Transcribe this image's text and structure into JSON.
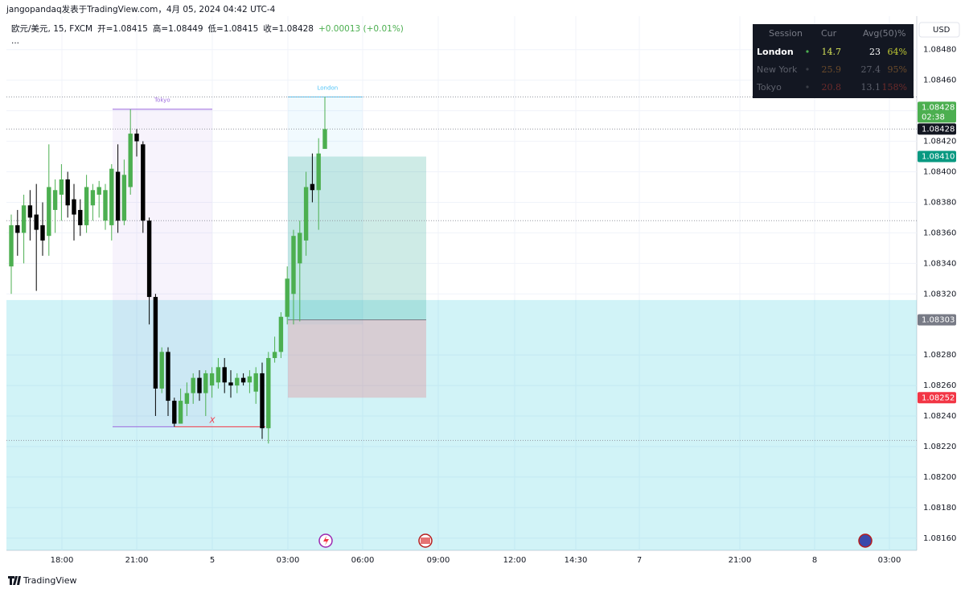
{
  "header": "jangopandaq发表于TradingView.com，4月 05, 2024 04:42 UTC-4",
  "legend": {
    "symbol": "欧元/美元, 15, FXCM",
    "items": [
      "开=1.08415",
      "高=1.08449",
      "低=1.08415",
      "收=1.08428",
      "+0.00013 (+0.01%)"
    ],
    "more": "..."
  },
  "currency": "USD",
  "footer": "TradingView",
  "session_table": {
    "columns": [
      "Session",
      "Cur",
      "Avg(50)",
      "%"
    ],
    "rows": [
      [
        "London",
        "14.7",
        "23",
        "64%"
      ],
      [
        "New York",
        "25.9",
        "27.4",
        "95%"
      ],
      [
        "Tokyo",
        "20.8",
        "13.1",
        "158%"
      ]
    ]
  },
  "chart_data": {
    "type": "candlestick",
    "x_labels": [
      "18:00",
      "21:00",
      "5",
      "03:00",
      "06:00",
      "09:00",
      "12:00",
      "14:30",
      "7",
      "21:00",
      "8",
      "03:00"
    ],
    "open": [
      1.08338,
      1.08365,
      1.0836,
      1.08378,
      1.08372,
      1.08365,
      1.08358,
      1.08375,
      1.08385,
      1.08395,
      1.08382,
      1.08375,
      1.08365,
      1.08378,
      1.08385,
      1.08368,
      1.08365,
      1.084,
      1.08368,
      1.0839,
      1.08425,
      1.08418,
      1.08368,
      1.08318,
      1.08258,
      1.08282,
      1.0825,
      1.08235,
      1.08248,
      1.08255,
      1.08265,
      1.08255,
      1.0826,
      1.08262,
      1.08272,
      1.08262,
      1.0826,
      1.08265,
      1.08262,
      1.08256,
      1.08268,
      1.08232,
      1.08278,
      1.08282,
      1.08305,
      1.0832,
      1.0834,
      1.08355,
      1.08392,
      1.08388,
      1.08415
    ],
    "high": [
      1.08372,
      1.08375,
      1.08385,
      1.08388,
      1.08392,
      1.0838,
      1.08418,
      1.08395,
      1.08405,
      1.084,
      1.08392,
      1.08382,
      1.08398,
      1.08392,
      1.08394,
      1.08392,
      1.08405,
      1.08418,
      1.08408,
      1.08441,
      1.08428,
      1.0842,
      1.0837,
      1.0832,
      1.08285,
      1.08285,
      1.08252,
      1.08258,
      1.08262,
      1.08268,
      1.0827,
      1.0827,
      1.08272,
      1.08278,
      1.08278,
      1.0827,
      1.08268,
      1.08268,
      1.0827,
      1.08272,
      1.08275,
      1.08282,
      1.08292,
      1.08308,
      1.08338,
      1.08362,
      1.08368,
      1.084,
      1.08412,
      1.08422,
      1.08449
    ],
    "low": [
      1.0832,
      1.08345,
      1.0834,
      1.08355,
      1.08322,
      1.08345,
      1.08345,
      1.0836,
      1.08368,
      1.0837,
      1.08355,
      1.08358,
      1.0836,
      1.08368,
      1.0837,
      1.08362,
      1.08355,
      1.0836,
      1.08365,
      1.08385,
      1.0841,
      1.0836,
      1.083,
      1.0824,
      1.08255,
      1.0824,
      1.08233,
      1.08235,
      1.0824,
      1.08248,
      1.0825,
      1.0824,
      1.08252,
      1.08258,
      1.08255,
      1.08252,
      1.08255,
      1.0826,
      1.08255,
      1.08248,
      1.08225,
      1.08222,
      1.08275,
      1.08278,
      1.083,
      1.083,
      1.08302,
      1.08345,
      1.0838,
      1.08362,
      1.08415
    ],
    "close": [
      1.08365,
      1.0836,
      1.08378,
      1.0837,
      1.08362,
      1.08355,
      1.0839,
      1.08388,
      1.08395,
      1.08378,
      1.08372,
      1.08365,
      1.0839,
      1.08388,
      1.0839,
      1.08388,
      1.08402,
      1.08368,
      1.08398,
      1.08425,
      1.0842,
      1.08368,
      1.08318,
      1.08258,
      1.08282,
      1.0825,
      1.08235,
      1.0825,
      1.08255,
      1.08265,
      1.08255,
      1.08268,
      1.08268,
      1.08272,
      1.08262,
      1.0826,
      1.08265,
      1.08262,
      1.08266,
      1.08268,
      1.08232,
      1.08278,
      1.08282,
      1.08305,
      1.0833,
      1.08358,
      1.0836,
      1.0839,
      1.08388,
      1.08412,
      1.08428
    ],
    "up_color": "#4caf50",
    "down_color": "#000000",
    "ylim": [
      1.08152,
      1.08502
    ],
    "yticks": [
      {
        "value": 1.0848,
        "label": "1.08480"
      },
      {
        "value": 1.0846,
        "label": "1.08460"
      },
      {
        "value": 1.0844,
        "label": "1.08440"
      },
      {
        "value": 1.0842,
        "label": "1.08420"
      },
      {
        "value": 1.084,
        "label": "1.08400"
      },
      {
        "value": 1.0838,
        "label": "1.08380"
      },
      {
        "value": 1.0836,
        "label": "1.08360"
      },
      {
        "value": 1.0834,
        "label": "1.08340"
      },
      {
        "value": 1.0832,
        "label": "1.08320"
      },
      {
        "value": 1.0828,
        "label": "1.08280"
      },
      {
        "value": 1.0826,
        "label": "1.08260"
      },
      {
        "value": 1.0824,
        "label": "1.08240"
      },
      {
        "value": 1.0822,
        "label": "1.08220"
      },
      {
        "value": 1.082,
        "label": "1.08200"
      },
      {
        "value": 1.0818,
        "label": "1.08180"
      },
      {
        "value": 1.0816,
        "label": "1.08160"
      }
    ],
    "levels": [
      1.08449,
      1.08428,
      1.08368,
      1.08224
    ],
    "zone_top": 1.08316,
    "sessions": [
      {
        "name": "Tokyo",
        "high": 1.08441,
        "low": 1.08233,
        "color": "#9c6ade"
      },
      {
        "name": "London",
        "high": 1.08449,
        "low": 1.083,
        "color": "#4fc3f7"
      }
    ],
    "position": {
      "target": {
        "value": 1.0841,
        "label": "1.08410"
      },
      "entry": 1.08303,
      "stop": 1.08252
    },
    "price_labels": [
      {
        "price": 1.08428,
        "color": "#4caf50"
      },
      {
        "price": 1.08428,
        "color": "#131722"
      },
      {
        "price": {
          "value": 1.0841,
          "label": "1.08410"
        },
        "color": "#089981"
      },
      {
        "price": 1.08303,
        "color": "#787b86"
      },
      {
        "price": 1.08252,
        "color": "#f23645"
      }
    ],
    "countdown": "02:38",
    "marker": "X"
  }
}
